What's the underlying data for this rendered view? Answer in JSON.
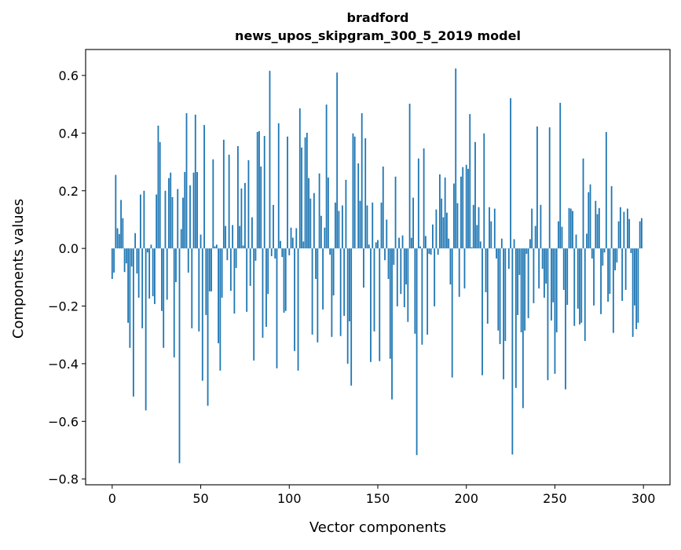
{
  "chart_data": {
    "type": "bar",
    "title_line1": "bradford",
    "title_line2": "news_upos_skipgram_300_5_2019 model",
    "xlabel": "Vector components",
    "ylabel": "Components values",
    "xlim": [
      -15,
      315
    ],
    "ylim": [
      -0.82,
      0.69
    ],
    "xticks": [
      0,
      50,
      100,
      150,
      200,
      250,
      300
    ],
    "xtick_labels": [
      "0",
      "50",
      "100",
      "150",
      "200",
      "250",
      "300"
    ],
    "yticks": [
      0.6,
      0.4,
      0.2,
      0.0,
      -0.2,
      -0.4,
      -0.6,
      -0.8
    ],
    "ytick_labels": [
      "0.6",
      "0.4",
      "0.2",
      "0.0",
      "−0.2",
      "−0.4",
      "−0.6",
      "−0.8"
    ],
    "grid": false,
    "bar_color": "#1f77b4",
    "values": [
      -0.106,
      -0.084,
      0.255,
      0.07,
      0.05,
      0.168,
      0.105,
      -0.082,
      -0.052,
      -0.258,
      -0.345,
      -0.063,
      -0.514,
      0.053,
      -0.087,
      -0.171,
      0.187,
      -0.277,
      0.2,
      -0.562,
      -0.014,
      -0.174,
      0.013,
      -0.166,
      -0.193,
      0.187,
      0.426,
      0.369,
      -0.217,
      -0.345,
      0.2,
      -0.178,
      0.244,
      0.263,
      0.178,
      -0.378,
      -0.117,
      0.206,
      -0.745,
      0.067,
      0.176,
      0.265,
      0.469,
      -0.084,
      0.219,
      -0.277,
      0.263,
      0.464,
      0.265,
      -0.288,
      0.048,
      -0.459,
      0.428,
      -0.231,
      -0.546,
      -0.149,
      -0.149,
      0.309,
      0.007,
      0.013,
      -0.329,
      -0.424,
      -0.171,
      0.377,
      0.078,
      -0.041,
      0.325,
      -0.147,
      0.081,
      -0.226,
      -0.068,
      0.355,
      0.078,
      0.208,
      0.01,
      0.227,
      -0.22,
      0.306,
      -0.13,
      0.108,
      -0.389,
      -0.043,
      0.404,
      0.407,
      0.284,
      -0.31,
      0.39,
      -0.272,
      -0.158,
      0.616,
      -0.027,
      0.151,
      -0.035,
      -0.416,
      0.434,
      0.026,
      -0.03,
      -0.223,
      -0.217,
      0.388,
      -0.024,
      0.072,
      0.037,
      -0.356,
      0.07,
      -0.424,
      0.486,
      0.35,
      0.024,
      0.385,
      0.401,
      0.244,
      0.173,
      -0.299,
      0.192,
      -0.106,
      -0.326,
      0.26,
      0.113,
      -0.212,
      0.072,
      0.499,
      0.246,
      -0.022,
      -0.307,
      -0.163,
      0.159,
      0.61,
      0.13,
      -0.304,
      0.149,
      -0.234,
      0.238,
      -0.4,
      -0.253,
      -0.476,
      0.399,
      0.388,
      0.0,
      0.295,
      0.165,
      0.469,
      -0.136,
      0.382,
      0.149,
      0.013,
      -0.394,
      0.159,
      -0.288,
      0.021,
      0.029,
      -0.391,
      0.159,
      0.284,
      -0.041,
      0.1,
      -0.106,
      -0.383,
      -0.524,
      -0.057,
      0.249,
      -0.201,
      0.037,
      -0.158,
      0.045,
      -0.204,
      -0.125,
      -0.255,
      0.502,
      0.037,
      0.176,
      -0.296,
      -0.717,
      0.312,
      0.007,
      -0.334,
      0.347,
      0.043,
      -0.299,
      -0.019,
      -0.022,
      0.083,
      -0.201,
      0.135,
      -0.022,
      0.257,
      0.173,
      0.108,
      0.246,
      0.124,
      0.034,
      -0.125,
      -0.448,
      0.225,
      0.624,
      0.157,
      -0.168,
      0.249,
      0.282,
      -0.139,
      0.29,
      0.276,
      0.466,
      0.004,
      0.151,
      0.369,
      0.081,
      0.143,
      0.024,
      -0.44,
      0.399,
      -0.152,
      -0.261,
      0.143,
      0.094,
      0.0,
      0.138,
      -0.035,
      -0.285,
      -0.332,
      0.034,
      -0.454,
      -0.321,
      0.0,
      -0.071,
      0.521,
      -0.715,
      0.032,
      -0.484,
      -0.231,
      -0.092,
      -0.291,
      -0.554,
      -0.285,
      -0.019,
      -0.242,
      0.032,
      0.138,
      -0.19,
      0.078,
      0.423,
      -0.139,
      0.151,
      -0.071,
      -0.171,
      -0.122,
      -0.457,
      0.42,
      -0.25,
      -0.187,
      -0.435,
      -0.291,
      0.094,
      0.505,
      0.075,
      -0.144,
      -0.489,
      -0.196,
      0.14,
      0.138,
      0.13,
      -0.269,
      0.048,
      -0.209,
      -0.264,
      -0.258,
      0.312,
      -0.321,
      0.051,
      0.195,
      0.222,
      -0.035,
      -0.198,
      0.165,
      0.119,
      0.14,
      -0.228,
      -0.06,
      -0.014,
      0.404,
      -0.185,
      -0.158,
      0.216,
      -0.293,
      -0.076,
      -0.049,
      0.094,
      0.143,
      -0.182,
      0.127,
      -0.144,
      0.138,
      0.102,
      -0.016,
      -0.307,
      -0.198,
      -0.28,
      -0.258,
      0.094,
      0.105
    ]
  }
}
